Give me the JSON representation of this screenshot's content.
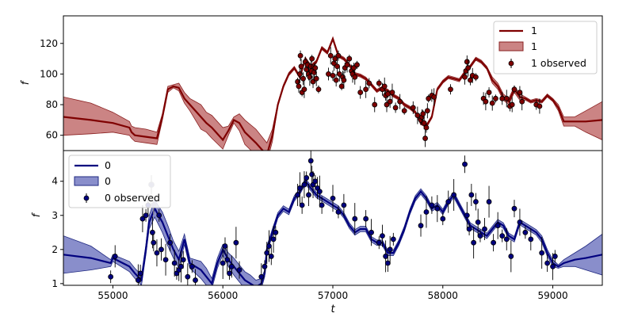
{
  "chart_data": [
    {
      "type": "line",
      "panel": "top",
      "xlabel": "",
      "ylabel": "f",
      "xlim": [
        54550,
        59450
      ],
      "ylim": [
        50,
        138
      ],
      "xticks": [
        55000,
        56000,
        57000,
        58000,
        59000
      ],
      "yticks": [
        60,
        80,
        100,
        120
      ],
      "legend": "top-right",
      "color": "#7f0000",
      "band_color": "#a83232",
      "legend_entries": [
        "1",
        "1",
        "1 observed"
      ],
      "model": {
        "x": [
          54550,
          54800,
          55000,
          55150,
          55170,
          55200,
          55300,
          55400,
          55450,
          55500,
          55550,
          55600,
          55650,
          55700,
          55800,
          55850,
          55900,
          56000,
          56050,
          56100,
          56150,
          56200,
          56300,
          56400,
          56450,
          56500,
          56550,
          56600,
          56650,
          56700,
          56750,
          56800,
          56850,
          56900,
          56950,
          57000,
          57050,
          57100,
          57150,
          57200,
          57250,
          57300,
          57350,
          57400,
          57450,
          57500,
          57550,
          57600,
          57650,
          57700,
          57750,
          57800,
          57850,
          57900,
          57950,
          58000,
          58050,
          58100,
          58150,
          58200,
          58250,
          58300,
          58350,
          58400,
          58450,
          58500,
          58550,
          58600,
          58650,
          58700,
          58750,
          58800,
          58850,
          58900,
          58950,
          59000,
          59050,
          59100,
          59200,
          59300,
          59450
        ],
        "y": [
          72,
          70,
          68,
          65,
          62,
          60,
          59,
          58,
          72,
          90,
          92,
          91,
          84,
          80,
          72,
          68,
          65,
          57,
          63,
          70,
          68,
          62,
          55,
          47,
          60,
          80,
          92,
          100,
          104,
          98,
          110,
          105,
          108,
          117,
          114,
          123,
          112,
          110,
          106,
          100,
          99,
          97,
          93,
          89,
          91,
          89,
          86,
          84,
          80,
          78,
          75,
          68,
          66,
          72,
          90,
          95,
          98,
          97,
          96,
          101,
          105,
          110,
          108,
          104,
          96,
          92,
          85,
          82,
          90,
          85,
          84,
          82,
          83,
          82,
          86,
          83,
          78,
          69,
          69,
          69,
          70
        ]
      },
      "band": {
        "lower": [
          60,
          61,
          62,
          60,
          58,
          56,
          55,
          54,
          70,
          88,
          91,
          89,
          81,
          76,
          64,
          62,
          58,
          51,
          60,
          68,
          63,
          54,
          47,
          42,
          56,
          79,
          91,
          99,
          103,
          97,
          109,
          104,
          107,
          116,
          113,
          122,
          111,
          109,
          105,
          99,
          98,
          96,
          92,
          88,
          90,
          88,
          85,
          83,
          79,
          77,
          74,
          67,
          65,
          71,
          89,
          94,
          97,
          96,
          95,
          100,
          104,
          109,
          107,
          103,
          94,
          90,
          83,
          80,
          88,
          83,
          83,
          81,
          82,
          81,
          85,
          82,
          76,
          66,
          66,
          62,
          57
        ],
        "upper": [
          85,
          81,
          75,
          69,
          66,
          65,
          64,
          62,
          74,
          92,
          93,
          94,
          88,
          84,
          80,
          75,
          73,
          65,
          66,
          72,
          74,
          70,
          64,
          55,
          64,
          81,
          93,
          101,
          105,
          99,
          111,
          106,
          109,
          118,
          115,
          124,
          113,
          111,
          107,
          101,
          100,
          98,
          94,
          90,
          92,
          90,
          87,
          85,
          81,
          79,
          76,
          69,
          67,
          73,
          91,
          96,
          99,
          98,
          97,
          102,
          106,
          111,
          109,
          105,
          98,
          94,
          87,
          84,
          92,
          87,
          85,
          83,
          84,
          83,
          87,
          84,
          80,
          72,
          72,
          76,
          82
        ]
      },
      "observed": {
        "x": [
          56680,
          56690,
          56700,
          56705,
          56712,
          56720,
          56730,
          56740,
          56750,
          56760,
          56770,
          56780,
          56790,
          56800,
          56805,
          56810,
          56820,
          56830,
          56840,
          56850,
          56870,
          56960,
          56980,
          57000,
          57010,
          57020,
          57030,
          57040,
          57050,
          57060,
          57080,
          57090,
          57100,
          57110,
          57130,
          57150,
          57170,
          57180,
          57190,
          57200,
          57220,
          57250,
          57300,
          57330,
          57380,
          57420,
          57450,
          57470,
          57480,
          57490,
          57500,
          57520,
          57540,
          57570,
          57610,
          57650,
          57730,
          57770,
          57800,
          57810,
          57820,
          57830,
          57840,
          57850,
          57860,
          57870,
          57900,
          57920,
          58070,
          58200,
          58210,
          58220,
          58230,
          58250,
          58270,
          58300,
          58370,
          58390,
          58420,
          58450,
          58480,
          58540,
          58580,
          58610,
          58630,
          58650,
          58700,
          58720,
          58850,
          58880
        ],
        "y": [
          95,
          92,
          100,
          112,
          105,
          88,
          97,
          90,
          108,
          103,
          106,
          100,
          98,
          105,
          102,
          110,
          95,
          101,
          104,
          97,
          90,
          100,
          112,
          99,
          107,
          110,
          96,
          105,
          112,
          100,
          92,
          98,
          96,
          104,
          106,
          110,
          102,
          100,
          104,
          98,
          106,
          88,
          90,
          94,
          80,
          94,
          90,
          92,
          86,
          80,
          87,
          82,
          88,
          78,
          82,
          76,
          78,
          73,
          70,
          72,
          74,
          68,
          58,
          65,
          76,
          84,
          86,
          85,
          90,
          98,
          102,
          108,
          104,
          96,
          99,
          98,
          84,
          82,
          88,
          81,
          84,
          84,
          84,
          79,
          80,
          90,
          88,
          82,
          80,
          79
        ]
      }
    },
    {
      "type": "line",
      "panel": "bottom",
      "xlabel": "t",
      "ylabel": "f",
      "xlim": [
        54550,
        59450
      ],
      "ylim": [
        0.95,
        4.9
      ],
      "xticks": [
        55000,
        56000,
        57000,
        58000,
        59000
      ],
      "yticks": [
        1,
        2,
        3,
        4
      ],
      "legend": "top-left",
      "color": "#00007f",
      "band_color": "#3a42a8",
      "legend_entries": [
        "0",
        "0",
        "0 observed"
      ],
      "model": {
        "x": [
          54550,
          54800,
          54980,
          55000,
          55150,
          55200,
          55260,
          55300,
          55330,
          55380,
          55450,
          55500,
          55550,
          55600,
          55650,
          55700,
          55750,
          55800,
          55850,
          55900,
          55950,
          56000,
          56050,
          56100,
          56150,
          56200,
          56250,
          56300,
          56350,
          56380,
          56400,
          56450,
          56500,
          56550,
          56600,
          56650,
          56700,
          56750,
          56800,
          56850,
          56900,
          56950,
          57000,
          57050,
          57100,
          57150,
          57200,
          57250,
          57300,
          57350,
          57400,
          57450,
          57500,
          57550,
          57600,
          57650,
          57700,
          57750,
          57800,
          57850,
          57900,
          57950,
          58000,
          58050,
          58100,
          58150,
          58200,
          58250,
          58300,
          58350,
          58400,
          58450,
          58500,
          58550,
          58600,
          58650,
          58700,
          58750,
          58800,
          58850,
          58900,
          58950,
          59000,
          59050,
          59100,
          59200,
          59300,
          59450
        ],
        "y": [
          1.85,
          1.75,
          1.6,
          1.75,
          1.5,
          1.3,
          1.1,
          2.0,
          2.8,
          3.2,
          2.8,
          2.4,
          2.0,
          1.7,
          2.3,
          1.6,
          1.5,
          1.4,
          1.2,
          1.0,
          1.6,
          2.0,
          1.7,
          1.5,
          1.3,
          1.1,
          1.0,
          0.9,
          1.0,
          1.3,
          2.0,
          2.5,
          3.0,
          3.2,
          3.1,
          3.5,
          3.7,
          4.0,
          3.8,
          3.6,
          3.5,
          3.4,
          3.3,
          3.2,
          3.0,
          2.7,
          2.5,
          2.6,
          2.6,
          2.3,
          2.2,
          2.2,
          1.9,
          1.9,
          2.2,
          2.6,
          3.1,
          3.5,
          3.7,
          3.5,
          3.2,
          3.3,
          3.1,
          3.4,
          3.6,
          3.3,
          3.0,
          2.7,
          2.6,
          2.5,
          2.4,
          2.6,
          2.8,
          2.7,
          2.4,
          2.3,
          2.8,
          2.7,
          2.6,
          2.5,
          2.3,
          1.9,
          1.6,
          1.5,
          1.6,
          1.7,
          1.75,
          1.85
        ]
      },
      "band": {
        "lower": [
          1.3,
          1.4,
          1.5,
          1.65,
          1.35,
          1.15,
          0.95,
          1.85,
          2.6,
          2.95,
          2.5,
          2.1,
          1.75,
          1.45,
          2.15,
          1.45,
          1.3,
          1.15,
          0.95,
          0.85,
          1.45,
          1.85,
          1.5,
          1.25,
          1.05,
          0.85,
          0.75,
          0.7,
          0.85,
          1.2,
          1.9,
          2.4,
          2.92,
          3.12,
          3.02,
          3.42,
          3.62,
          3.92,
          3.72,
          3.52,
          3.42,
          3.32,
          3.22,
          3.12,
          2.92,
          2.62,
          2.42,
          2.52,
          2.52,
          2.22,
          2.12,
          2.12,
          1.82,
          1.82,
          2.12,
          2.52,
          3.02,
          3.42,
          3.62,
          3.42,
          3.12,
          3.22,
          3.02,
          3.32,
          3.52,
          3.22,
          2.92,
          2.62,
          2.52,
          2.42,
          2.32,
          2.52,
          2.72,
          2.62,
          2.32,
          2.22,
          2.72,
          2.62,
          2.52,
          2.42,
          2.2,
          1.8,
          1.5,
          1.45,
          1.5,
          1.5,
          1.4,
          1.25
        ],
        "upper": [
          2.4,
          2.1,
          1.7,
          1.85,
          1.65,
          1.45,
          1.25,
          2.15,
          3.0,
          3.45,
          3.1,
          2.7,
          2.25,
          1.95,
          2.45,
          1.75,
          1.7,
          1.65,
          1.45,
          1.15,
          1.75,
          2.15,
          1.9,
          1.75,
          1.55,
          1.35,
          1.25,
          1.1,
          1.15,
          1.4,
          2.1,
          2.6,
          3.08,
          3.28,
          3.18,
          3.58,
          3.78,
          4.08,
          3.88,
          3.68,
          3.58,
          3.48,
          3.38,
          3.28,
          3.08,
          2.78,
          2.58,
          2.68,
          2.68,
          2.38,
          2.28,
          2.28,
          1.98,
          1.98,
          2.28,
          2.68,
          3.18,
          3.58,
          3.78,
          3.58,
          3.28,
          3.38,
          3.18,
          3.48,
          3.68,
          3.38,
          3.08,
          2.78,
          2.68,
          2.58,
          2.48,
          2.68,
          2.88,
          2.78,
          2.48,
          2.38,
          2.88,
          2.78,
          2.68,
          2.58,
          2.4,
          2.0,
          1.7,
          1.55,
          1.7,
          1.9,
          2.1,
          2.45
        ]
      },
      "observed": {
        "x": [
          54980,
          55020,
          55230,
          55250,
          55270,
          55300,
          55320,
          55360,
          55370,
          55400,
          55420,
          55440,
          55480,
          55520,
          55560,
          55580,
          55600,
          55620,
          55640,
          55680,
          55720,
          55750,
          56000,
          56020,
          56040,
          56060,
          56080,
          56120,
          56150,
          56350,
          56380,
          56400,
          56420,
          56440,
          56460,
          56480,
          56680,
          56700,
          56720,
          56740,
          56760,
          56780,
          56800,
          56810,
          56820,
          56840,
          56860,
          56880,
          56900,
          57000,
          57050,
          57100,
          57200,
          57300,
          57350,
          57420,
          57450,
          57480,
          57500,
          57520,
          57550,
          57800,
          57850,
          57900,
          57950,
          58000,
          58050,
          58100,
          58200,
          58220,
          58240,
          58260,
          58280,
          58300,
          58320,
          58340,
          58380,
          58420,
          58460,
          58500,
          58540,
          58580,
          58620,
          58650,
          58700,
          58750,
          58800,
          58900,
          58950,
          59000,
          59020
        ],
        "y": [
          1.2,
          1.8,
          1.1,
          1.3,
          2.9,
          3.0,
          3.3,
          2.5,
          2.2,
          1.9,
          3.0,
          2.0,
          1.7,
          2.2,
          1.6,
          1.3,
          1.4,
          1.5,
          1.7,
          1.2,
          1.5,
          1.1,
          1.6,
          2.1,
          1.7,
          1.3,
          1.5,
          2.2,
          1.4,
          1.2,
          1.5,
          1.9,
          2.1,
          1.8,
          2.3,
          2.5,
          3.6,
          3.8,
          3.3,
          3.9,
          4.1,
          3.6,
          4.6,
          4.2,
          3.9,
          4.0,
          3.8,
          3.7,
          3.3,
          3.5,
          3.1,
          3.3,
          2.9,
          2.9,
          2.5,
          2.2,
          2.4,
          1.8,
          1.6,
          2.0,
          2.3,
          2.7,
          3.1,
          3.3,
          3.2,
          2.9,
          3.4,
          3.6,
          4.5,
          3.0,
          2.6,
          3.6,
          2.2,
          3.4,
          2.8,
          2.4,
          2.6,
          3.4,
          2.2,
          2.7,
          2.4,
          2.3,
          1.8,
          3.2,
          2.8,
          2.5,
          2.3,
          1.9,
          1.6,
          1.5,
          1.8
        ]
      },
      "outlier": {
        "x": [
          55350,
          55370
        ],
        "y": [
          3.9,
          3.3
        ]
      }
    }
  ]
}
